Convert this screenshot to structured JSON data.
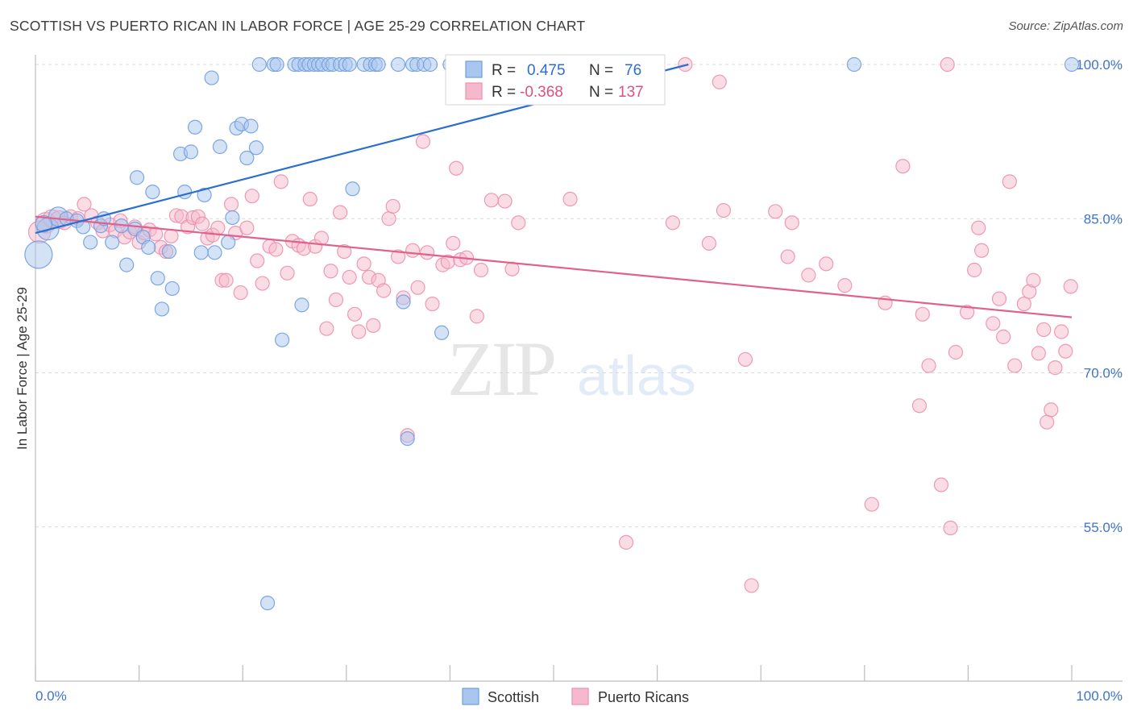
{
  "title": "SCOTTISH VS PUERTO RICAN IN LABOR FORCE | AGE 25-29 CORRELATION CHART",
  "source": "Source: ZipAtlas.com",
  "colors": {
    "blue_fill": "#a9c6ee",
    "blue_stroke": "#6f9fe0",
    "blue_line": "#2a6fd0",
    "pink_fill": "#f6b9cc",
    "pink_stroke": "#ec8fae",
    "pink_line": "#e0628c",
    "grid": "#d9d9d9",
    "axis_text": "#3f73c8"
  },
  "chart_data": {
    "type": "scatter",
    "title": "SCOTTISH VS PUERTO RICAN IN LABOR FORCE | AGE 25-29 CORRELATION CHART",
    "xlabel": "",
    "ylabel": "In Labor Force | Age 25-29",
    "xlim": [
      0,
      100
    ],
    "ylim": [
      40,
      102
    ],
    "x_tick_labels": [
      "0.0%",
      "100.0%"
    ],
    "y_ticks": [
      55,
      70,
      85,
      100
    ],
    "y_tick_labels": [
      "55.0%",
      "70.0%",
      "85.0%",
      "100.0%"
    ],
    "grid": "horizontal dashed",
    "legend_placement": "top-center",
    "legend": [
      {
        "series": "Scottish",
        "r_label": "R =",
        "r": "0.475",
        "n_label": "N =",
        "n": "76"
      },
      {
        "series": "Puerto Ricans",
        "r_label": "R =",
        "r": "-0.368",
        "n_label": "N =",
        "n": "137"
      }
    ],
    "watermark": "ZIPatlas",
    "series": [
      {
        "name": "Scottish",
        "trend": {
          "x": [
            0,
            63
          ],
          "y": [
            83.6,
            100
          ]
        },
        "points": [
          {
            "x": 0.3,
            "y": 81.5,
            "s": 2
          },
          {
            "x": 1.2,
            "y": 84.0,
            "s": 1.6
          },
          {
            "x": 2.2,
            "y": 85.2,
            "s": 1.4
          },
          {
            "x": 0.8,
            "y": 84.5,
            "s": 1.2
          },
          {
            "x": 3.0,
            "y": 85.0
          },
          {
            "x": 4.0,
            "y": 84.8
          },
          {
            "x": 4.6,
            "y": 84.2
          },
          {
            "x": 5.3,
            "y": 82.7
          },
          {
            "x": 6.3,
            "y": 84.3
          },
          {
            "x": 6.6,
            "y": 85.0
          },
          {
            "x": 7.4,
            "y": 82.7
          },
          {
            "x": 8.3,
            "y": 84.3
          },
          {
            "x": 8.8,
            "y": 80.5
          },
          {
            "x": 9.6,
            "y": 84.0
          },
          {
            "x": 9.8,
            "y": 89.0
          },
          {
            "x": 10.4,
            "y": 83.2
          },
          {
            "x": 10.9,
            "y": 82.2
          },
          {
            "x": 11.3,
            "y": 87.6
          },
          {
            "x": 11.8,
            "y": 79.2
          },
          {
            "x": 12.2,
            "y": 76.2
          },
          {
            "x": 12.9,
            "y": 81.8
          },
          {
            "x": 13.2,
            "y": 78.2
          },
          {
            "x": 14.0,
            "y": 91.3
          },
          {
            "x": 14.4,
            "y": 87.6
          },
          {
            "x": 15.0,
            "y": 91.5
          },
          {
            "x": 15.4,
            "y": 93.9
          },
          {
            "x": 16.0,
            "y": 81.7
          },
          {
            "x": 16.3,
            "y": 87.3
          },
          {
            "x": 17.0,
            "y": 98.7
          },
          {
            "x": 17.3,
            "y": 81.7
          },
          {
            "x": 17.8,
            "y": 92.0
          },
          {
            "x": 18.6,
            "y": 82.7
          },
          {
            "x": 19.0,
            "y": 85.1
          },
          {
            "x": 19.4,
            "y": 93.8
          },
          {
            "x": 19.9,
            "y": 94.2
          },
          {
            "x": 20.4,
            "y": 90.9
          },
          {
            "x": 20.8,
            "y": 94.0
          },
          {
            "x": 21.3,
            "y": 91.9
          },
          {
            "x": 21.6,
            "y": 100
          },
          {
            "x": 22.4,
            "y": 47.6
          },
          {
            "x": 23.0,
            "y": 100
          },
          {
            "x": 23.3,
            "y": 100
          },
          {
            "x": 23.8,
            "y": 73.2
          },
          {
            "x": 25.0,
            "y": 100
          },
          {
            "x": 25.4,
            "y": 100
          },
          {
            "x": 25.7,
            "y": 76.6
          },
          {
            "x": 26.0,
            "y": 100
          },
          {
            "x": 26.4,
            "y": 100
          },
          {
            "x": 26.9,
            "y": 100
          },
          {
            "x": 27.3,
            "y": 100
          },
          {
            "x": 27.7,
            "y": 100
          },
          {
            "x": 28.3,
            "y": 100
          },
          {
            "x": 28.7,
            "y": 100
          },
          {
            "x": 29.4,
            "y": 100
          },
          {
            "x": 29.9,
            "y": 100
          },
          {
            "x": 30.3,
            "y": 100
          },
          {
            "x": 30.6,
            "y": 87.9
          },
          {
            "x": 31.7,
            "y": 100
          },
          {
            "x": 32.3,
            "y": 100
          },
          {
            "x": 32.8,
            "y": 100
          },
          {
            "x": 33.1,
            "y": 100
          },
          {
            "x": 35.0,
            "y": 100
          },
          {
            "x": 35.5,
            "y": 76.9
          },
          {
            "x": 35.9,
            "y": 63.6
          },
          {
            "x": 36.4,
            "y": 100
          },
          {
            "x": 36.8,
            "y": 100
          },
          {
            "x": 37.5,
            "y": 100
          },
          {
            "x": 38.1,
            "y": 100
          },
          {
            "x": 39.2,
            "y": 73.9
          },
          {
            "x": 40.0,
            "y": 100
          },
          {
            "x": 41.0,
            "y": 100
          },
          {
            "x": 41.6,
            "y": 100
          },
          {
            "x": 49.5,
            "y": 100
          },
          {
            "x": 51.4,
            "y": 100
          },
          {
            "x": 79.0,
            "y": 100
          },
          {
            "x": 100.0,
            "y": 100
          }
        ]
      },
      {
        "name": "Puerto Ricans",
        "trend": {
          "x": [
            0,
            100
          ],
          "y": [
            85.2,
            75.4
          ]
        },
        "points": [
          {
            "x": 0.4,
            "y": 83.7,
            "s": 1.6
          },
          {
            "x": 1.0,
            "y": 84.6,
            "s": 1.5
          },
          {
            "x": 1.6,
            "y": 85.0,
            "s": 1.3
          },
          {
            "x": 2.3,
            "y": 84.9,
            "s": 1.3
          },
          {
            "x": 2.8,
            "y": 84.6
          },
          {
            "x": 3.4,
            "y": 85.2
          },
          {
            "x": 4.1,
            "y": 85.0
          },
          {
            "x": 4.7,
            "y": 86.4
          },
          {
            "x": 5.4,
            "y": 85.3
          },
          {
            "x": 6.0,
            "y": 84.6
          },
          {
            "x": 6.5,
            "y": 83.8
          },
          {
            "x": 7.2,
            "y": 84.4
          },
          {
            "x": 7.7,
            "y": 83.8
          },
          {
            "x": 8.2,
            "y": 84.8
          },
          {
            "x": 8.6,
            "y": 83.2
          },
          {
            "x": 9.1,
            "y": 83.7
          },
          {
            "x": 9.6,
            "y": 84.2
          },
          {
            "x": 10.0,
            "y": 82.7
          },
          {
            "x": 10.5,
            "y": 83.6
          },
          {
            "x": 11.0,
            "y": 83.9
          },
          {
            "x": 11.6,
            "y": 83.5
          },
          {
            "x": 12.1,
            "y": 82.2
          },
          {
            "x": 12.6,
            "y": 81.8
          },
          {
            "x": 13.1,
            "y": 83.3
          },
          {
            "x": 13.6,
            "y": 85.3
          },
          {
            "x": 14.1,
            "y": 85.2
          },
          {
            "x": 14.7,
            "y": 84.2
          },
          {
            "x": 15.2,
            "y": 85.1
          },
          {
            "x": 15.7,
            "y": 85.2
          },
          {
            "x": 16.1,
            "y": 84.5
          },
          {
            "x": 16.6,
            "y": 83.1
          },
          {
            "x": 17.1,
            "y": 83.4
          },
          {
            "x": 17.6,
            "y": 84.1
          },
          {
            "x": 18.0,
            "y": 79.0
          },
          {
            "x": 18.4,
            "y": 79.0
          },
          {
            "x": 18.9,
            "y": 86.4
          },
          {
            "x": 19.3,
            "y": 83.6
          },
          {
            "x": 19.8,
            "y": 77.8
          },
          {
            "x": 20.4,
            "y": 84.1
          },
          {
            "x": 20.9,
            "y": 87.2
          },
          {
            "x": 21.4,
            "y": 80.9
          },
          {
            "x": 21.9,
            "y": 78.7
          },
          {
            "x": 22.6,
            "y": 82.3
          },
          {
            "x": 23.2,
            "y": 82.0
          },
          {
            "x": 23.7,
            "y": 88.6
          },
          {
            "x": 24.3,
            "y": 79.7
          },
          {
            "x": 24.8,
            "y": 82.8
          },
          {
            "x": 25.4,
            "y": 82.4
          },
          {
            "x": 25.9,
            "y": 82.1
          },
          {
            "x": 26.5,
            "y": 86.9
          },
          {
            "x": 27.0,
            "y": 82.3
          },
          {
            "x": 27.6,
            "y": 83.1
          },
          {
            "x": 28.1,
            "y": 74.3
          },
          {
            "x": 28.5,
            "y": 79.9
          },
          {
            "x": 29.0,
            "y": 77.1
          },
          {
            "x": 29.4,
            "y": 85.6
          },
          {
            "x": 29.8,
            "y": 81.8
          },
          {
            "x": 30.3,
            "y": 79.3
          },
          {
            "x": 30.8,
            "y": 75.7
          },
          {
            "x": 31.2,
            "y": 74.0
          },
          {
            "x": 31.7,
            "y": 80.6
          },
          {
            "x": 32.2,
            "y": 79.3
          },
          {
            "x": 32.6,
            "y": 74.6
          },
          {
            "x": 33.1,
            "y": 79.0
          },
          {
            "x": 33.6,
            "y": 78.0
          },
          {
            "x": 34.1,
            "y": 85.0
          },
          {
            "x": 34.5,
            "y": 86.2
          },
          {
            "x": 35.0,
            "y": 81.3
          },
          {
            "x": 35.5,
            "y": 77.3
          },
          {
            "x": 35.9,
            "y": 63.9
          },
          {
            "x": 36.4,
            "y": 81.9
          },
          {
            "x": 36.9,
            "y": 78.3
          },
          {
            "x": 37.4,
            "y": 92.5
          },
          {
            "x": 37.8,
            "y": 81.7
          },
          {
            "x": 38.3,
            "y": 76.7
          },
          {
            "x": 39.3,
            "y": 80.5
          },
          {
            "x": 39.8,
            "y": 80.8
          },
          {
            "x": 40.3,
            "y": 82.6
          },
          {
            "x": 40.6,
            "y": 89.9
          },
          {
            "x": 41.0,
            "y": 81.0
          },
          {
            "x": 41.6,
            "y": 81.2
          },
          {
            "x": 42.6,
            "y": 75.5
          },
          {
            "x": 43.0,
            "y": 80.0
          },
          {
            "x": 44.0,
            "y": 86.8
          },
          {
            "x": 45.3,
            "y": 86.7
          },
          {
            "x": 46.0,
            "y": 80.1
          },
          {
            "x": 46.6,
            "y": 84.6
          },
          {
            "x": 51.6,
            "y": 86.9
          },
          {
            "x": 57.0,
            "y": 53.5
          },
          {
            "x": 61.5,
            "y": 84.6
          },
          {
            "x": 62.7,
            "y": 100
          },
          {
            "x": 65.0,
            "y": 82.6
          },
          {
            "x": 66.0,
            "y": 98.3
          },
          {
            "x": 66.4,
            "y": 85.8
          },
          {
            "x": 68.5,
            "y": 71.3
          },
          {
            "x": 69.1,
            "y": 49.3
          },
          {
            "x": 71.4,
            "y": 85.7
          },
          {
            "x": 72.6,
            "y": 81.3
          },
          {
            "x": 73.0,
            "y": 84.6
          },
          {
            "x": 74.6,
            "y": 79.5
          },
          {
            "x": 76.3,
            "y": 80.6
          },
          {
            "x": 78.1,
            "y": 78.5
          },
          {
            "x": 80.7,
            "y": 57.2
          },
          {
            "x": 82.0,
            "y": 76.8
          },
          {
            "x": 83.7,
            "y": 90.1
          },
          {
            "x": 85.3,
            "y": 66.8
          },
          {
            "x": 85.6,
            "y": 75.7
          },
          {
            "x": 86.2,
            "y": 70.7
          },
          {
            "x": 87.4,
            "y": 59.1
          },
          {
            "x": 88.0,
            "y": 100
          },
          {
            "x": 88.3,
            "y": 54.9
          },
          {
            "x": 88.8,
            "y": 72.0
          },
          {
            "x": 89.9,
            "y": 75.9
          },
          {
            "x": 90.6,
            "y": 80.0
          },
          {
            "x": 91.0,
            "y": 84.1
          },
          {
            "x": 91.3,
            "y": 81.9
          },
          {
            "x": 92.4,
            "y": 74.8
          },
          {
            "x": 93.0,
            "y": 77.2
          },
          {
            "x": 93.4,
            "y": 73.5
          },
          {
            "x": 94.0,
            "y": 88.6
          },
          {
            "x": 94.5,
            "y": 70.7
          },
          {
            "x": 95.4,
            "y": 76.7
          },
          {
            "x": 95.9,
            "y": 77.9
          },
          {
            "x": 96.3,
            "y": 79.0
          },
          {
            "x": 96.8,
            "y": 71.9
          },
          {
            "x": 97.3,
            "y": 74.2
          },
          {
            "x": 97.6,
            "y": 65.2
          },
          {
            "x": 98.0,
            "y": 66.4
          },
          {
            "x": 98.4,
            "y": 70.5
          },
          {
            "x": 99.0,
            "y": 74.0
          },
          {
            "x": 99.4,
            "y": 72.1
          },
          {
            "x": 99.9,
            "y": 78.4
          }
        ]
      }
    ]
  },
  "bottom_legend": [
    {
      "label": "Scottish"
    },
    {
      "label": "Puerto Ricans"
    }
  ]
}
